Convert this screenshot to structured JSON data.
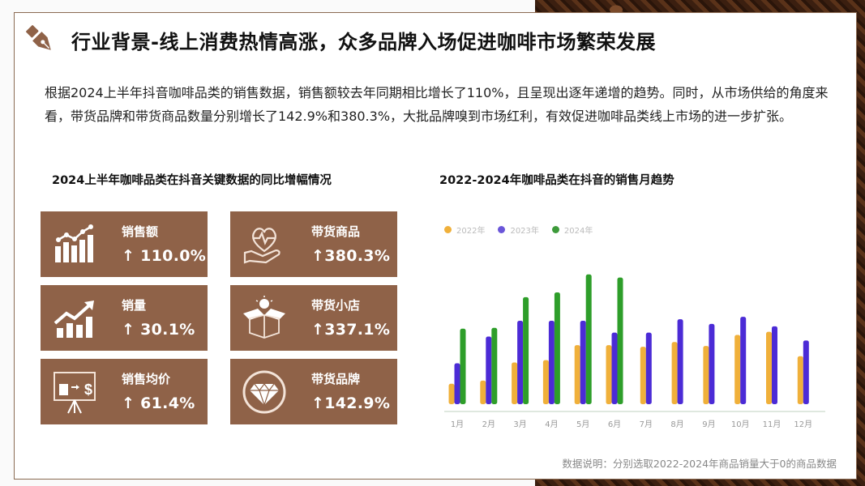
{
  "header": {
    "title": "行业背景-线上消费热情高涨，众多品牌入场促进咖啡市场繁荣发展",
    "icon": "fountain-pen-icon"
  },
  "intro": {
    "text": "根据2024上半年抖音咖啡品类的销售数据，销售额较去年同期相比增长了110%，且呈现出逐年递增的趋势。同时，从市场供给的角度来看，带货品牌和带货商品数量分别增长了142.9%和380.3%，大批品牌嗅到市场红利，有效促进咖啡品类线上市场的进一步扩张。"
  },
  "kpi_section": {
    "title": "2024上半年咖啡品类在抖音关键数据的同比增幅情况",
    "card_color": "#8f6248",
    "cards": [
      {
        "label": "销售额",
        "value": "↑ 110.0%",
        "icon": "bar-trend-chart-icon"
      },
      {
        "label": "带货商品",
        "value": "↑380.3%",
        "icon": "heart-in-hand-icon"
      },
      {
        "label": "销量",
        "value": "↑ 30.1%",
        "icon": "growth-arrow-chart-icon"
      },
      {
        "label": "带货小店",
        "value": "↑337.1%",
        "icon": "open-box-lightbulb-icon"
      },
      {
        "label": "销售均价",
        "value": "↑ 61.4%",
        "icon": "price-tag-board-icon"
      },
      {
        "label": "带货品牌",
        "value": "↑142.9%",
        "icon": "diamond-icon"
      }
    ]
  },
  "chart_section": {
    "title": "2022-2024年咖啡品类在抖音的销售月趋势"
  },
  "chart_data": {
    "type": "bar",
    "title": "2022-2024年咖啡品类在抖音的销售月趋势",
    "xlabel": "",
    "ylabel": "",
    "grid": false,
    "legend_position": "top-left",
    "categories": [
      "1月",
      "2月",
      "3月",
      "4月",
      "5月",
      "6月",
      "7月",
      "8月",
      "9月",
      "10月",
      "11月",
      "12月"
    ],
    "series": [
      {
        "name": "2022年",
        "color": "#f0b03a",
        "values": [
          26,
          30,
          53,
          56,
          75,
          75,
          73,
          79,
          74,
          88,
          92,
          61
        ]
      },
      {
        "name": "2023年",
        "color": "#4b2bd6",
        "values": [
          52,
          86,
          106,
          106,
          106,
          91,
          91,
          108,
          102,
          111,
          99,
          81
        ]
      },
      {
        "name": "2024年",
        "color": "#2e9e2a",
        "values": [
          96,
          97,
          136,
          142,
          165,
          161,
          null,
          null,
          null,
          null,
          null,
          null
        ]
      }
    ],
    "ylim": [
      0,
      175
    ]
  },
  "footnote": {
    "text": "数据说明：分别选取2022-2024年商品销量大于0的商品数据"
  }
}
